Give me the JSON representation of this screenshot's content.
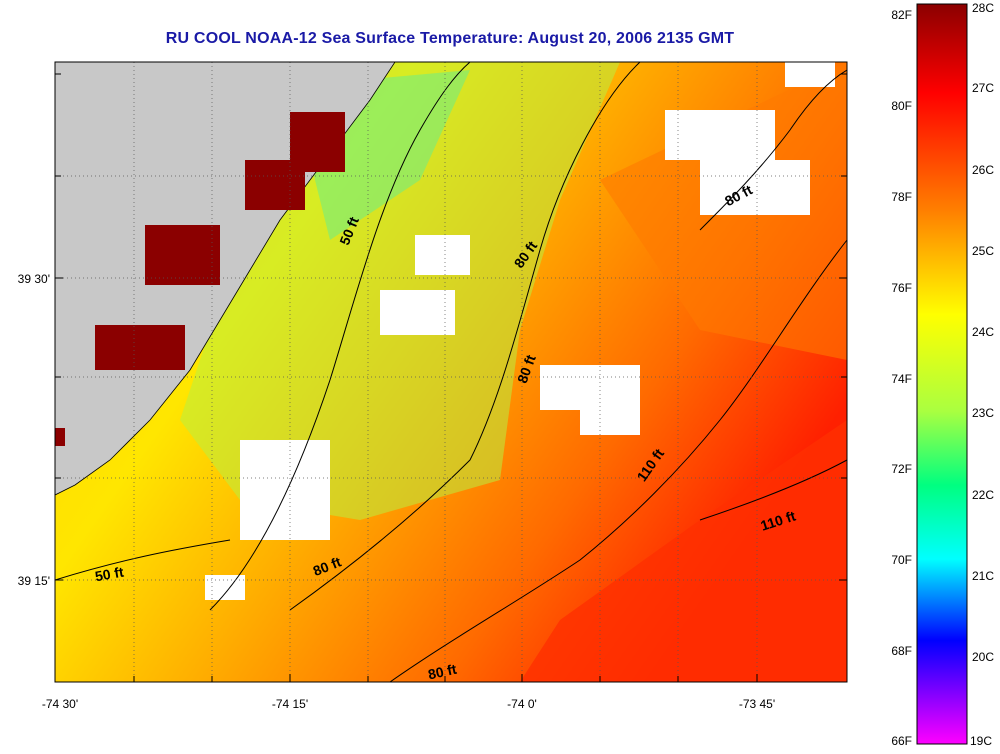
{
  "title": "RU COOL  NOAA-12  Sea Surface Temperature:  August 20, 2006 2135 GMT",
  "axes": {
    "x_labels": [
      "-74 30'",
      "-74 15'",
      "-74 0'",
      "-73 45'"
    ],
    "y_labels": [
      "39 30'",
      "39 15'"
    ]
  },
  "depth_labels": [
    "50 ft",
    "80 ft",
    "80 ft",
    "80 ft",
    "80 ft",
    "110 ft",
    "110 ft",
    "50 ft",
    "80 ft"
  ],
  "colorbar": {
    "fahrenheit": [
      "82F",
      "80F",
      "78F",
      "76F",
      "74F",
      "72F",
      "70F",
      "68F",
      "66F"
    ],
    "celsius": [
      "28C",
      "27C",
      "26C",
      "25C",
      "24C",
      "23C",
      "22C",
      "21C",
      "20C",
      "19C"
    ]
  },
  "colors": {
    "title": "#1a1aa6",
    "land": "#c8c8c8",
    "colorbar_stops": [
      "#8b0000",
      "#ff0000",
      "#ff8000",
      "#ffff00",
      "#00ff80",
      "#00ffff",
      "#0000ff",
      "#ff00ff"
    ]
  }
}
